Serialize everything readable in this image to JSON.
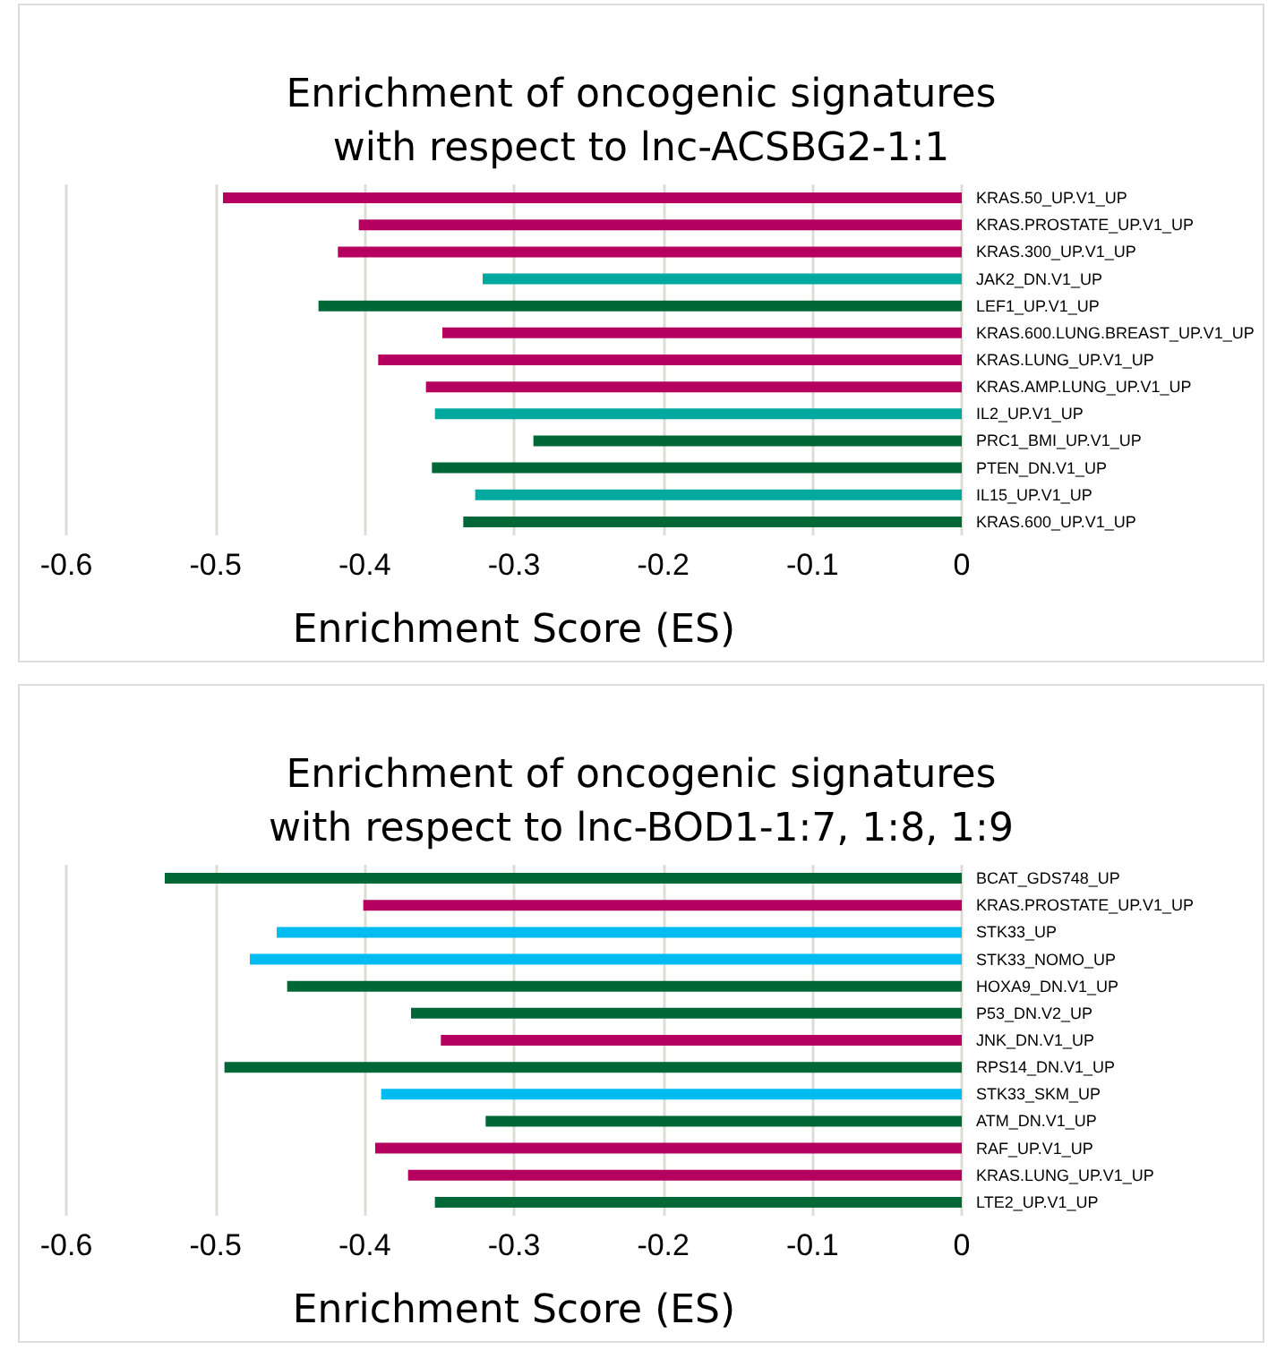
{
  "chart_data": [
    {
      "type": "bar",
      "orientation": "horizontal",
      "title": "Enrichment of oncogenic signatures\nwith respect to lnc-ACSBG2-1:1",
      "xlabel": "Enrichment Score (ES)",
      "categories": [
        "KRAS.50_UP.V1_UP",
        "KRAS.PROSTATE_UP.V1_UP",
        "KRAS.300_UP.V1_UP",
        "JAK2_DN.V1_UP",
        "LEF1_UP.V1_UP",
        "KRAS.600.LUNG.BREAST_UP.V1_UP",
        "KRAS.LUNG_UP.V1_UP",
        "KRAS.AMP.LUNG_UP.V1_UP",
        "IL2_UP.V1_UP",
        "PRC1_BMI_UP.V1_UP",
        "PTEN_DN.V1_UP",
        "IL15_UP.V1_UP",
        "KRAS.600_UP.V1_UP"
      ],
      "values": [
        -0.495,
        -0.404,
        -0.418,
        -0.321,
        -0.431,
        -0.348,
        -0.391,
        -0.359,
        -0.353,
        -0.287,
        -0.355,
        -0.326,
        -0.334
      ],
      "colors": [
        "#b5005f",
        "#b5005f",
        "#b5005f",
        "#00a99d",
        "#006837",
        "#b5005f",
        "#b5005f",
        "#b5005f",
        "#00a99d",
        "#006837",
        "#006837",
        "#00a99d",
        "#006837"
      ],
      "xlim": [
        -0.6,
        0
      ],
      "xticks": [
        -0.6,
        -0.5,
        -0.4,
        -0.3,
        -0.2,
        -0.1,
        0
      ],
      "grid": "x"
    },
    {
      "type": "bar",
      "orientation": "horizontal",
      "title": "Enrichment of oncogenic signatures\nwith respect to lnc-BOD1-1:7, 1:8, 1:9",
      "xlabel": "Enrichment Score (ES)",
      "categories": [
        "BCAT_GDS748_UP",
        "KRAS.PROSTATE_UP.V1_UP",
        "STK33_UP",
        "STK33_NOMO_UP",
        "HOXA9_DN.V1_UP",
        "P53_DN.V2_UP",
        "JNK_DN.V1_UP",
        "RPS14_DN.V1_UP",
        "STK33_SKM_UP",
        "ATM_DN.V1_UP",
        "RAF_UP.V1_UP",
        "KRAS.LUNG_UP.V1_UP",
        "LTE2_UP.V1_UP"
      ],
      "values": [
        -0.534,
        -0.401,
        -0.459,
        -0.477,
        -0.452,
        -0.369,
        -0.349,
        -0.494,
        -0.389,
        -0.319,
        -0.393,
        -0.371,
        -0.353
      ],
      "colors": [
        "#006837",
        "#b5005f",
        "#00bcf0",
        "#00bcf0",
        "#006837",
        "#006837",
        "#b5005f",
        "#006837",
        "#00bcf0",
        "#006837",
        "#b5005f",
        "#b5005f",
        "#006837"
      ],
      "xlim": [
        -0.6,
        0
      ],
      "xticks": [
        -0.6,
        -0.5,
        -0.4,
        -0.3,
        -0.2,
        -0.1,
        0
      ],
      "grid": "x"
    }
  ]
}
